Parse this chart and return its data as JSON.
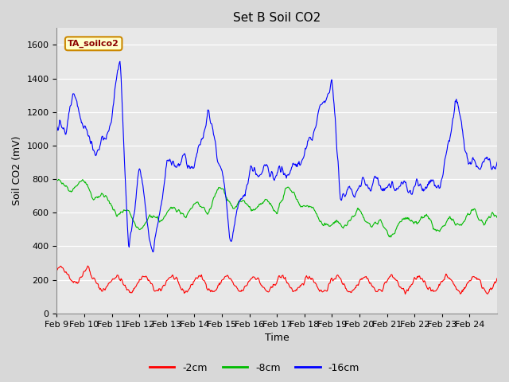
{
  "title": "Set B Soil CO2",
  "xlabel": "Time",
  "ylabel": "Soil CO2 (mV)",
  "ylim": [
    0,
    1700
  ],
  "yticks": [
    0,
    200,
    400,
    600,
    800,
    1000,
    1200,
    1400,
    1600
  ],
  "x_labels": [
    "Feb 9",
    "Feb 10",
    "Feb 11",
    "Feb 12",
    "Feb 13",
    "Feb 14",
    "Feb 15",
    "Feb 16",
    "Feb 17",
    "Feb 18",
    "Feb 19",
    "Feb 20",
    "Feb 21",
    "Feb 22",
    "Feb 23",
    "Feb 24"
  ],
  "legend_label": "TA_soilco2",
  "series_labels": [
    "-2cm",
    "-8cm",
    "-16cm"
  ],
  "series_colors": [
    "#ff0000",
    "#00bb00",
    "#0000ff"
  ],
  "fig_bg_color": "#d8d8d8",
  "plot_bg_color": "#e8e8e8",
  "title_fontsize": 11,
  "axis_fontsize": 9,
  "tick_fontsize": 8
}
